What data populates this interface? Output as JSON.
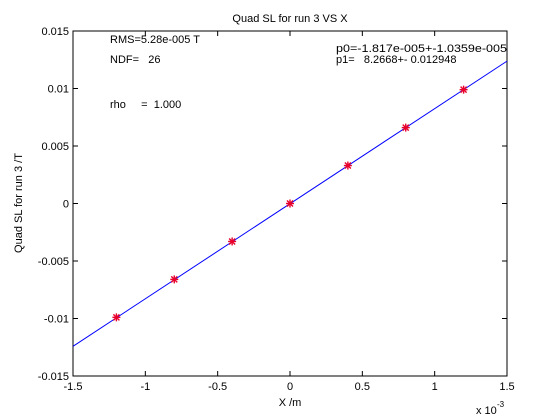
{
  "chart_data": {
    "type": "scatter",
    "title": "Quad SL for run 3 VS X",
    "xlabel": "X /m",
    "ylabel": "Quad SL for run 3 /T",
    "x_multiplier": "x 10",
    "x_multiplier_exp": "-3",
    "xlim": [
      -1.5,
      1.5
    ],
    "ylim": [
      -0.015,
      0.015
    ],
    "x_ticks": [
      -1.5,
      -1,
      -0.5,
      0,
      0.5,
      1,
      1.5
    ],
    "x_tick_labels": [
      "-1.5",
      "-1",
      "-0.5",
      "0",
      "0.5",
      "1",
      "1.5"
    ],
    "y_ticks": [
      -0.015,
      -0.01,
      -0.005,
      0,
      0.005,
      0.01,
      0.015
    ],
    "y_tick_labels": [
      "-0.015",
      "-0.01",
      "-0.005",
      "0",
      "0.005",
      "0.01",
      "0.015"
    ],
    "grid": false,
    "series": [
      {
        "x": [
          -1.2,
          -0.8,
          -0.4,
          0.0,
          0.4,
          0.8,
          1.2
        ],
        "y": [
          -0.0099,
          -0.0066,
          -0.0033,
          0.0,
          0.0033,
          0.0066,
          0.0099
        ],
        "marker": "*",
        "color": "#e8002a"
      }
    ],
    "fit_line": {
      "intercept": -1.817e-05,
      "slope_per_axis_unit": 0.0082668,
      "color": "#0000ff"
    },
    "annotations": {
      "rms": "RMS=5.28e-005 T",
      "ndf": "NDF=   26",
      "rho": "rho     =  1.000",
      "p0": "p0=-1.817e-005+-1.0359e-005",
      "p1": "p1=   8.2668+- 0.012948"
    }
  }
}
